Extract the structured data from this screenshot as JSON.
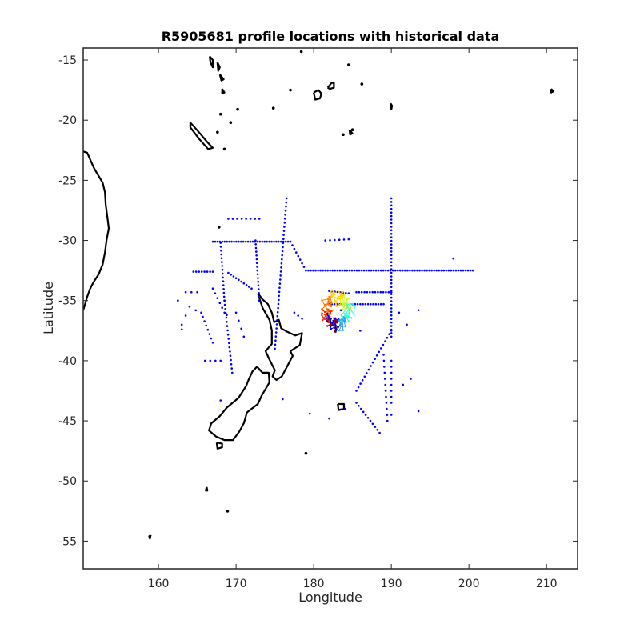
{
  "chart_data": {
    "type": "scatter",
    "title": "R5905681 profile locations with historical data",
    "xlabel": "Longitude",
    "ylabel": "Latitude",
    "xlim": [
      150.3,
      214.0
    ],
    "ylim": [
      -57.3,
      -14.0
    ],
    "x_ticks": [
      160,
      170,
      180,
      190,
      200,
      210
    ],
    "y_ticks": [
      -15,
      -20,
      -25,
      -30,
      -35,
      -40,
      -45,
      -50,
      -55
    ],
    "grid": false,
    "legend": "none",
    "colors": {
      "historical": "#0000ff",
      "coastline": "#000000",
      "trajectory": [
        "#aa0000",
        "#ff2200",
        "#ff7a00",
        "#ffd000",
        "#c8ff30",
        "#30ffd0",
        "#30a0ff",
        "#0000cc"
      ]
    },
    "historical_segments": [
      {
        "from": [
          167.0,
          -30.1
        ],
        "to": [
          177.0,
          -30.1
        ],
        "n": 34
      },
      {
        "from": [
          177.0,
          -30.1
        ],
        "to": [
          179.0,
          -32.5
        ],
        "n": 9
      },
      {
        "from": [
          179.0,
          -32.5
        ],
        "to": [
          200.5,
          -32.5
        ],
        "n": 70
      },
      {
        "from": [
          190.0,
          -26.5
        ],
        "to": [
          190.0,
          -38.0
        ],
        "n": 40
      },
      {
        "from": [
          176.5,
          -26.5
        ],
        "to": [
          175.0,
          -39.0
        ],
        "n": 38
      },
      {
        "from": [
          172.5,
          -30.0
        ],
        "to": [
          173.0,
          -35.0
        ],
        "n": 17
      },
      {
        "from": [
          168.0,
          -30.2
        ],
        "to": [
          168.5,
          -35.0
        ],
        "n": 16
      },
      {
        "from": [
          168.5,
          -35.0
        ],
        "to": [
          169.5,
          -41.0
        ],
        "n": 18
      },
      {
        "from": [
          190.0,
          -37.5
        ],
        "to": [
          185.5,
          -42.5
        ],
        "n": 18
      },
      {
        "from": [
          185.5,
          -43.5
        ],
        "to": [
          188.5,
          -46.0
        ],
        "n": 11
      },
      {
        "from": [
          182.0,
          -35.3
        ],
        "to": [
          189.0,
          -35.3
        ],
        "n": 22
      },
      {
        "from": [
          182.0,
          -34.2
        ],
        "to": [
          184.5,
          -34.4
        ],
        "n": 8
      },
      {
        "from": [
          185.5,
          -34.3
        ],
        "to": [
          190.0,
          -34.3
        ],
        "n": 14
      },
      {
        "from": [
          164.5,
          -32.6
        ],
        "to": [
          167.0,
          -32.6
        ],
        "n": 8
      },
      {
        "from": [
          169.0,
          -32.7
        ],
        "to": [
          172.0,
          -34.0
        ],
        "n": 10
      },
      {
        "from": [
          167.0,
          -34.0
        ],
        "to": [
          168.5,
          -36.0
        ],
        "n": 6
      },
      {
        "from": [
          163.5,
          -34.3
        ],
        "to": [
          165.0,
          -34.3
        ],
        "n": 3
      },
      {
        "from": [
          165.5,
          -36.0
        ],
        "to": [
          167.0,
          -38.5
        ],
        "n": 8
      },
      {
        "from": [
          169.0,
          -28.2
        ],
        "to": [
          173.0,
          -28.2
        ],
        "n": 8
      },
      {
        "from": [
          170.0,
          -36.0
        ],
        "to": [
          171.0,
          -38.0
        ],
        "n": 4
      },
      {
        "from": [
          166.0,
          -40.0
        ],
        "to": [
          168.0,
          -40.0
        ],
        "n": 4
      },
      {
        "from": [
          181.5,
          -30.0
        ],
        "to": [
          184.5,
          -29.9
        ],
        "n": 6
      },
      {
        "from": [
          189.0,
          -39.5
        ],
        "to": [
          189.5,
          -45.0
        ],
        "n": 12
      },
      {
        "from": [
          190.0,
          -40.0
        ],
        "to": [
          190.0,
          -43.5
        ],
        "n": 8
      },
      {
        "from": [
          163.0,
          -37.0
        ],
        "to": [
          164.0,
          -35.5
        ],
        "n": 3
      },
      {
        "from": [
          177.5,
          -36.0
        ],
        "to": [
          178.5,
          -36.5
        ],
        "n": 3
      }
    ],
    "historical_points": [
      [
        196.5,
        -32.5
      ],
      [
        198.0,
        -31.5
      ],
      [
        193.5,
        -35.8
      ],
      [
        192.0,
        -37.0
      ],
      [
        193.5,
        -44.2
      ],
      [
        192.5,
        -41.5
      ],
      [
        191.0,
        -36.0
      ],
      [
        186.0,
        -37.5
      ],
      [
        179.5,
        -44.4
      ],
      [
        182.0,
        -44.8
      ],
      [
        176.0,
        -43.2
      ],
      [
        168.0,
        -43.3
      ],
      [
        163.0,
        -37.4
      ],
      [
        162.5,
        -35.0
      ],
      [
        164.8,
        -35.8
      ],
      [
        168.8,
        -36.2
      ],
      [
        184.0,
        -44.0
      ],
      [
        190.0,
        -44.5
      ],
      [
        191.5,
        -42.0
      ],
      [
        183.5,
        -35.8
      ]
    ],
    "trajectory": {
      "center": [
        183.0,
        -35.9
      ],
      "rx": 1.9,
      "ry": 1.5,
      "n": 160
    },
    "coastlines": [
      [
        [
          172.8,
          -34.4
        ],
        [
          173.4,
          -34.9
        ],
        [
          174.1,
          -35.3
        ],
        [
          174.6,
          -36.0
        ],
        [
          174.9,
          -36.8
        ],
        [
          175.5,
          -36.6
        ],
        [
          175.8,
          -37.3
        ],
        [
          176.6,
          -37.6
        ],
        [
          177.6,
          -37.9
        ],
        [
          178.5,
          -37.7
        ],
        [
          178.2,
          -38.7
        ],
        [
          177.0,
          -39.2
        ],
        [
          177.3,
          -39.6
        ],
        [
          176.8,
          -40.2
        ],
        [
          175.9,
          -41.3
        ],
        [
          175.2,
          -41.6
        ],
        [
          174.7,
          -41.3
        ],
        [
          175.0,
          -40.8
        ],
        [
          174.3,
          -39.9
        ],
        [
          173.8,
          -39.2
        ],
        [
          174.6,
          -38.6
        ],
        [
          174.6,
          -37.5
        ],
        [
          174.3,
          -36.6
        ],
        [
          173.4,
          -35.6
        ],
        [
          172.8,
          -34.4
        ]
      ],
      [
        [
          172.7,
          -40.5
        ],
        [
          173.4,
          -41.0
        ],
        [
          174.2,
          -41.0
        ],
        [
          174.3,
          -41.8
        ],
        [
          173.3,
          -42.9
        ],
        [
          172.8,
          -43.6
        ],
        [
          171.4,
          -44.3
        ],
        [
          171.0,
          -45.2
        ],
        [
          170.4,
          -45.9
        ],
        [
          169.6,
          -46.6
        ],
        [
          168.5,
          -46.6
        ],
        [
          167.4,
          -46.3
        ],
        [
          166.5,
          -45.8
        ],
        [
          166.8,
          -45.2
        ],
        [
          167.9,
          -44.6
        ],
        [
          168.8,
          -43.9
        ],
        [
          170.3,
          -43.1
        ],
        [
          171.3,
          -42.1
        ],
        [
          171.6,
          -41.6
        ],
        [
          172.1,
          -40.9
        ],
        [
          172.7,
          -40.5
        ]
      ],
      [
        [
          167.5,
          -46.8
        ],
        [
          168.2,
          -46.9
        ],
        [
          168.2,
          -47.2
        ],
        [
          167.6,
          -47.3
        ],
        [
          167.5,
          -46.8
        ]
      ],
      [
        [
          183.1,
          -43.6
        ],
        [
          183.9,
          -43.6
        ],
        [
          183.9,
          -44.0
        ],
        [
          183.2,
          -44.1
        ],
        [
          183.1,
          -43.6
        ]
      ],
      [
        [
          164.1,
          -20.2
        ],
        [
          165.2,
          -21.0
        ],
        [
          166.4,
          -21.9
        ],
        [
          167.0,
          -22.3
        ],
        [
          166.4,
          -22.4
        ],
        [
          165.3,
          -21.6
        ],
        [
          164.1,
          -20.6
        ],
        [
          164.1,
          -20.2
        ]
      ],
      [
        [
          181.8,
          -17.3
        ],
        [
          182.3,
          -16.9
        ],
        [
          182.6,
          -16.9
        ],
        [
          182.6,
          -17.3
        ],
        [
          182.1,
          -17.4
        ],
        [
          181.8,
          -17.3
        ]
      ],
      [
        [
          180.0,
          -17.7
        ],
        [
          180.6,
          -17.5
        ],
        [
          181.0,
          -17.8
        ],
        [
          180.8,
          -18.2
        ],
        [
          180.2,
          -18.3
        ],
        [
          180.0,
          -17.7
        ]
      ],
      [
        [
          150.3,
          -22.6
        ],
        [
          150.8,
          -22.7
        ],
        [
          151.7,
          -24.0
        ],
        [
          152.8,
          -25.2
        ],
        [
          153.1,
          -26.0
        ],
        [
          153.2,
          -27.0
        ],
        [
          153.4,
          -28.0
        ],
        [
          153.6,
          -29.0
        ],
        [
          153.3,
          -30.0
        ],
        [
          153.1,
          -31.0
        ],
        [
          152.8,
          -32.0
        ],
        [
          152.3,
          -32.8
        ],
        [
          151.6,
          -33.5
        ],
        [
          151.2,
          -34.0
        ],
        [
          150.8,
          -34.7
        ],
        [
          150.5,
          -35.4
        ],
        [
          150.3,
          -35.8
        ]
      ],
      [
        [
          166.6,
          -14.7
        ],
        [
          167.0,
          -15.0
        ],
        [
          167.0,
          -15.6
        ],
        [
          166.7,
          -15.2
        ],
        [
          166.6,
          -14.7
        ]
      ],
      [
        [
          167.6,
          -15.2
        ],
        [
          167.9,
          -15.6
        ],
        [
          167.7,
          -15.9
        ],
        [
          167.6,
          -15.2
        ]
      ],
      [
        [
          167.9,
          -16.2
        ],
        [
          168.4,
          -16.6
        ],
        [
          168.1,
          -16.7
        ],
        [
          167.9,
          -16.2
        ]
      ],
      [
        [
          168.2,
          -17.4
        ],
        [
          168.5,
          -17.7
        ],
        [
          168.2,
          -17.8
        ],
        [
          168.2,
          -17.4
        ]
      ],
      [
        [
          189.9,
          -18.6
        ],
        [
          190.1,
          -18.8
        ],
        [
          190.0,
          -19.1
        ],
        [
          189.9,
          -18.6
        ]
      ],
      [
        [
          184.6,
          -20.8
        ],
        [
          185.0,
          -21.1
        ],
        [
          184.7,
          -21.2
        ],
        [
          184.6,
          -20.8
        ]
      ],
      [
        [
          166.2,
          -50.5
        ],
        [
          166.3,
          -50.8
        ],
        [
          166.1,
          -50.8
        ],
        [
          166.2,
          -50.5
        ]
      ],
      [
        [
          159.0,
          -54.5
        ],
        [
          158.9,
          -54.8
        ],
        [
          158.8,
          -54.6
        ],
        [
          159.0,
          -54.5
        ]
      ],
      [
        [
          210.6,
          -17.4
        ],
        [
          210.9,
          -17.6
        ],
        [
          210.6,
          -17.7
        ],
        [
          210.6,
          -17.4
        ]
      ]
    ],
    "small_islands": [
      [
        168.9,
        -52.5
      ],
      [
        179.0,
        -47.7
      ],
      [
        185.0,
        -20.8
      ],
      [
        186.2,
        -17.0
      ],
      [
        183.8,
        -21.2
      ],
      [
        174.8,
        -19.0
      ],
      [
        177.0,
        -17.5
      ],
      [
        170.2,
        -19.1
      ],
      [
        168.0,
        -19.5
      ],
      [
        167.6,
        -21.0
      ],
      [
        168.5,
        -22.4
      ],
      [
        178.4,
        -14.3
      ],
      [
        184.5,
        -15.4
      ],
      [
        167.8,
        -28.9
      ],
      [
        169.3,
        -20.2
      ]
    ]
  }
}
